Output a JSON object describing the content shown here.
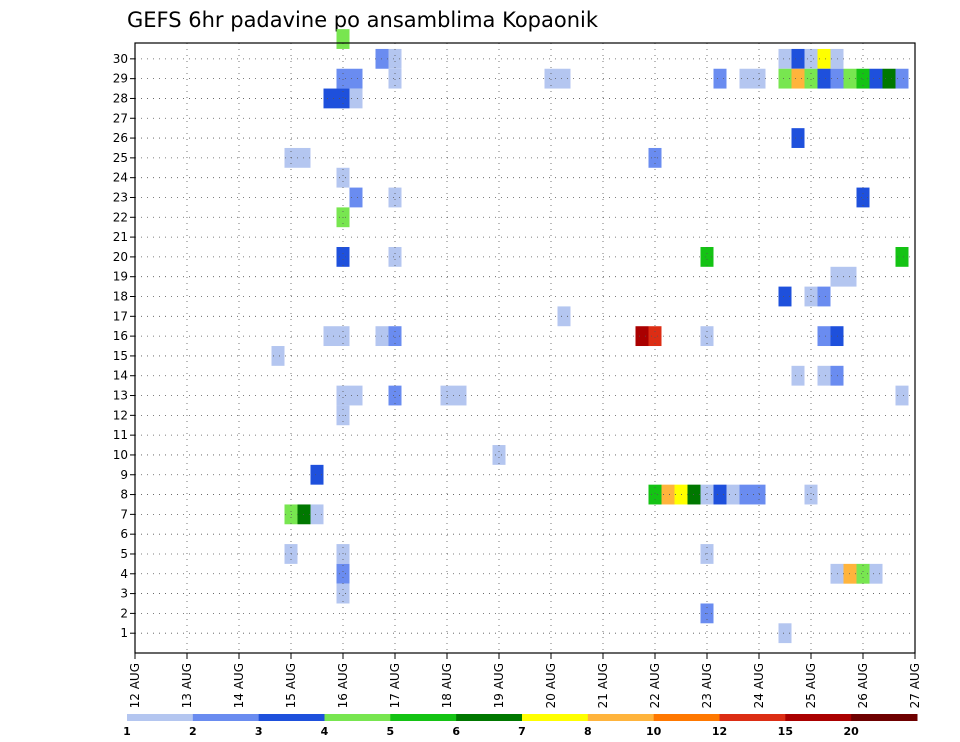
{
  "chart_data": {
    "type": "heatmap",
    "title": "GEFS 6hr padavine po ansamblima Kopaonik",
    "xlabel": "",
    "ylabel": "",
    "y_ticks": [
      "1",
      "2",
      "3",
      "4",
      "5",
      "6",
      "7",
      "8",
      "9",
      "10",
      "11",
      "12",
      "13",
      "14",
      "15",
      "16",
      "17",
      "18",
      "19",
      "20",
      "21",
      "22",
      "23",
      "24",
      "25",
      "26",
      "27",
      "28",
      "29",
      "30"
    ],
    "ylim": [
      0,
      30
    ],
    "x_ticks": [
      "12 AUG",
      "13 AUG",
      "14 AUG",
      "15 AUG",
      "16 AUG",
      "17 AUG",
      "18 AUG",
      "19 AUG",
      "20 AUG",
      "21 AUG",
      "22 AUG",
      "23 AUG",
      "24 AUG",
      "25 AUG",
      "26 AUG",
      "27 AUG"
    ],
    "xlim": [
      0,
      60
    ],
    "grid": true,
    "legend_position": "bottom",
    "legend": {
      "colors": [
        "#b4c6f0",
        "#6a8cf0",
        "#1e50dc",
        "#78e650",
        "#14c314",
        "#007800",
        "#ffff00",
        "#ffb43c",
        "#ff7800",
        "#dc2d14",
        "#aa0000",
        "#6e0000"
      ],
      "labels": [
        "1",
        "2",
        "3",
        "4",
        "5",
        "6",
        "7",
        "8",
        "10",
        "12",
        "15",
        "20"
      ],
      "label_slots": [
        0,
        1,
        2,
        3,
        4,
        5,
        6,
        7,
        8,
        9,
        10,
        11
      ]
    },
    "cells": [
      [
        15.5,
        0.5,
        1
      ],
      [
        16,
        1,
        1
      ],
      [
        16,
        2,
        2
      ],
      [
        16,
        3,
        1
      ],
      [
        14.5,
        3,
        1
      ],
      [
        14,
        5,
        2
      ],
      [
        13,
        5,
        1
      ],
      [
        14,
        5.5,
        3
      ],
      [
        13.5,
        5.5,
        4
      ],
      [
        14.5,
        5,
        2
      ],
      [
        16,
        7,
        2
      ],
      [
        16,
        10,
        1
      ],
      [
        16.5,
        11,
        1
      ],
      [
        16,
        11.5,
        1
      ],
      [
        20,
        11.5,
        2
      ],
      [
        21,
        11,
        1
      ],
      [
        22,
        11,
        1
      ],
      [
        16,
        14.5,
        1
      ],
      [
        16.5,
        14.5,
        1
      ],
      [
        19.5,
        14.5,
        1
      ],
      [
        20,
        14,
        2
      ],
      [
        17,
        13.5,
        1
      ],
      [
        26,
        4,
        2
      ],
      [
        27,
        4,
        3
      ],
      [
        28,
        4,
        2
      ],
      [
        20,
        8,
        1
      ],
      [
        25,
        17,
        2
      ],
      [
        39,
        7,
        1
      ],
      [
        39,
        7,
        1
      ],
      [
        22,
        18,
        1
      ],
      [
        39,
        7,
        1
      ],
      [
        38,
        8,
        1
      ],
      [
        39,
        7,
        1
      ],
      [
        38,
        15,
        1
      ],
      [
        40,
        15,
        1
      ],
      [
        39,
        7,
        1
      ]
    ],
    "cells_detail": [
      {
        "x": 16,
        "y": 30,
        "v": 4
      },
      {
        "x": 19,
        "y": 29,
        "v": 2
      },
      {
        "x": 20,
        "y": 29,
        "v": 1
      },
      {
        "x": 16,
        "y": 28,
        "v": 2
      },
      {
        "x": 17,
        "y": 28,
        "v": 2
      },
      {
        "x": 20,
        "y": 28,
        "v": 1
      },
      {
        "x": 15,
        "y": 27,
        "v": 3
      },
      {
        "x": 16,
        "y": 27,
        "v": 3
      },
      {
        "x": 17,
        "y": 27,
        "v": 1
      },
      {
        "x": 12,
        "y": 24,
        "v": 1
      },
      {
        "x": 13,
        "y": 24,
        "v": 1
      },
      {
        "x": 16,
        "y": 23,
        "v": 1
      },
      {
        "x": 17,
        "y": 22,
        "v": 2
      },
      {
        "x": 20,
        "y": 22,
        "v": 1
      },
      {
        "x": 16,
        "y": 21,
        "v": 4
      },
      {
        "x": 16,
        "y": 19,
        "v": 3
      },
      {
        "x": 20,
        "y": 19,
        "v": 1
      },
      {
        "x": 15,
        "y": 15,
        "v": 1
      },
      {
        "x": 16,
        "y": 15,
        "v": 1
      },
      {
        "x": 19,
        "y": 15,
        "v": 1
      },
      {
        "x": 20,
        "y": 15,
        "v": 2
      },
      {
        "x": 11,
        "y": 14,
        "v": 1
      },
      {
        "x": 16,
        "y": 12,
        "v": 1
      },
      {
        "x": 17,
        "y": 12,
        "v": 1
      },
      {
        "x": 20,
        "y": 12,
        "v": 2
      },
      {
        "x": 24,
        "y": 12,
        "v": 1
      },
      {
        "x": 25,
        "y": 12,
        "v": 1
      },
      {
        "x": 16,
        "y": 11,
        "v": 1
      },
      {
        "x": 14,
        "y": 8,
        "v": 3
      },
      {
        "x": 12,
        "y": 6,
        "v": 4
      },
      {
        "x": 13,
        "y": 6,
        "v": 6
      },
      {
        "x": 14,
        "y": 6,
        "v": 1
      },
      {
        "x": 12,
        "y": 4,
        "v": 1
      },
      {
        "x": 16,
        "y": 4,
        "v": 1
      },
      {
        "x": 16,
        "y": 3,
        "v": 2
      },
      {
        "x": 16,
        "y": 2,
        "v": 1
      },
      {
        "x": 28,
        "y": 9,
        "v": 1
      },
      {
        "x": 32,
        "y": 28,
        "v": 1
      },
      {
        "x": 33,
        "y": 28,
        "v": 1
      },
      {
        "x": 33,
        "y": 16,
        "v": 1
      },
      {
        "x": 39,
        "y": 15,
        "v": 15
      },
      {
        "x": 40,
        "y": 15,
        "v": 12
      },
      {
        "x": 40,
        "y": 24,
        "v": 2
      },
      {
        "x": 40,
        "y": 7,
        "v": 5
      },
      {
        "x": 41,
        "y": 7,
        "v": 8
      },
      {
        "x": 42,
        "y": 7,
        "v": 7
      },
      {
        "x": 43,
        "y": 7,
        "v": 6
      },
      {
        "x": 44,
        "y": 7,
        "v": 1
      },
      {
        "x": 45,
        "y": 7,
        "v": 3
      },
      {
        "x": 46,
        "y": 7,
        "v": 1
      },
      {
        "x": 47,
        "y": 7,
        "v": 2
      },
      {
        "x": 48,
        "y": 7,
        "v": 2
      },
      {
        "x": 44,
        "y": 19,
        "v": 5
      },
      {
        "x": 44,
        "y": 15,
        "v": 1
      },
      {
        "x": 44,
        "y": 4,
        "v": 1
      },
      {
        "x": 44,
        "y": 1,
        "v": 2
      },
      {
        "x": 45,
        "y": 28,
        "v": 2
      },
      {
        "x": 47,
        "y": 28,
        "v": 1
      },
      {
        "x": 48,
        "y": 28,
        "v": 1
      },
      {
        "x": 50,
        "y": 29,
        "v": 1
      },
      {
        "x": 51,
        "y": 29,
        "v": 3
      },
      {
        "x": 52,
        "y": 29,
        "v": 1
      },
      {
        "x": 53,
        "y": 29,
        "v": 7
      },
      {
        "x": 54,
        "y": 29,
        "v": 1
      },
      {
        "x": 50,
        "y": 28,
        "v": 4
      },
      {
        "x": 51,
        "y": 28,
        "v": 8
      },
      {
        "x": 52,
        "y": 28,
        "v": 4
      },
      {
        "x": 53,
        "y": 28,
        "v": 3
      },
      {
        "x": 54,
        "y": 28,
        "v": 2
      },
      {
        "x": 55,
        "y": 28,
        "v": 4
      },
      {
        "x": 56,
        "y": 28,
        "v": 5
      },
      {
        "x": 57,
        "y": 28,
        "v": 3
      },
      {
        "x": 58,
        "y": 28,
        "v": 6
      },
      {
        "x": 59,
        "y": 28,
        "v": 2
      },
      {
        "x": 51,
        "y": 25,
        "v": 3
      },
      {
        "x": 56,
        "y": 22,
        "v": 3
      },
      {
        "x": 59,
        "y": 19,
        "v": 5
      },
      {
        "x": 54,
        "y": 18,
        "v": 1
      },
      {
        "x": 55,
        "y": 18,
        "v": 1
      },
      {
        "x": 50,
        "y": 17,
        "v": 3
      },
      {
        "x": 52,
        "y": 17,
        "v": 1
      },
      {
        "x": 53,
        "y": 17,
        "v": 2
      },
      {
        "x": 53,
        "y": 15,
        "v": 2
      },
      {
        "x": 54,
        "y": 15,
        "v": 3
      },
      {
        "x": 51,
        "y": 13,
        "v": 1
      },
      {
        "x": 53,
        "y": 13,
        "v": 1
      },
      {
        "x": 54,
        "y": 13,
        "v": 2
      },
      {
        "x": 59,
        "y": 12,
        "v": 1
      },
      {
        "x": 52,
        "y": 7,
        "v": 1
      },
      {
        "x": 54,
        "y": 3,
        "v": 1
      },
      {
        "x": 55,
        "y": 3,
        "v": 8
      },
      {
        "x": 56,
        "y": 3,
        "v": 4
      },
      {
        "x": 57,
        "y": 3,
        "v": 1
      },
      {
        "x": 50,
        "y": 0,
        "v": 1
      }
    ]
  }
}
